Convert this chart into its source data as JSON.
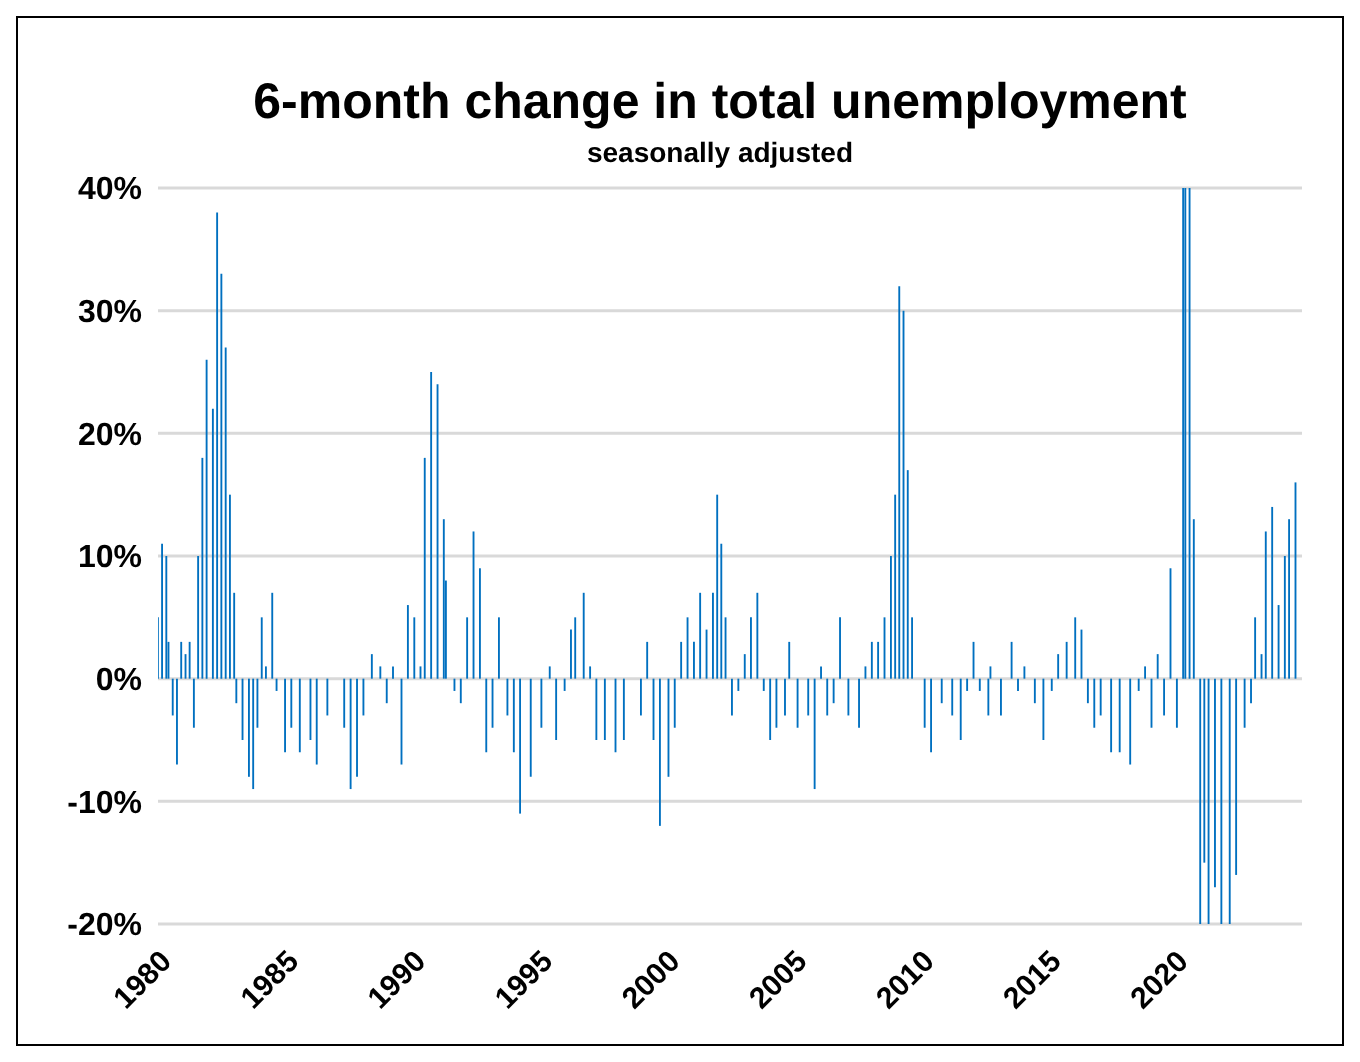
{
  "chart_data": {
    "type": "bar",
    "title": "6-month change in total unemployment",
    "subtitle": "seasonally adjusted",
    "x": [
      "1980-01",
      "1980-03",
      "1980-05",
      "1980-06",
      "1980-08",
      "1980-10",
      "1980-12",
      "1981-02",
      "1981-04",
      "1981-06",
      "1981-08",
      "1981-10",
      "1981-12",
      "1982-03",
      "1982-05",
      "1982-07",
      "1982-09",
      "1982-11",
      "1983-01",
      "1983-02",
      "1983-05",
      "1983-08",
      "1983-10",
      "1983-12",
      "1984-02",
      "1984-04",
      "1984-07",
      "1984-09",
      "1985-01",
      "1985-04",
      "1985-08",
      "1986-01",
      "1986-04",
      "1986-09",
      "1986-12",
      "1987-05",
      "1987-08",
      "1987-11",
      "1988-02",
      "1988-06",
      "1988-10",
      "1989-01",
      "1989-04",
      "1989-08",
      "1989-11",
      "1990-02",
      "1990-05",
      "1990-07",
      "1990-10",
      "1991-01",
      "1991-04",
      "1991-05",
      "1991-09",
      "1991-12",
      "1992-03",
      "1992-06",
      "1992-09",
      "1992-12",
      "1993-03",
      "1993-06",
      "1993-10",
      "1994-01",
      "1994-04",
      "1994-09",
      "1995-02",
      "1995-06",
      "1995-09",
      "1996-01",
      "1996-04",
      "1996-06",
      "1996-10",
      "1997-01",
      "1997-04",
      "1997-08",
      "1998-01",
      "1998-05",
      "1999-01",
      "1999-04",
      "1999-07",
      "1999-10",
      "2000-02",
      "2000-05",
      "2000-08",
      "2000-11",
      "2001-02",
      "2001-05",
      "2001-08",
      "2001-11",
      "2002-01",
      "2002-03",
      "2002-05",
      "2002-08",
      "2002-11",
      "2003-02",
      "2003-05",
      "2003-08",
      "2003-11",
      "2004-02",
      "2004-05",
      "2004-09",
      "2004-11",
      "2005-03",
      "2005-08",
      "2005-11",
      "2006-02",
      "2006-05",
      "2006-08",
      "2006-11",
      "2007-03",
      "2007-08",
      "2007-11",
      "2008-02",
      "2008-05",
      "2008-08",
      "2008-11",
      "2009-01",
      "2009-03",
      "2009-05",
      "2009-07",
      "2009-09",
      "2009-11",
      "2010-03",
      "2010-06",
      "2010-11",
      "2011-04",
      "2011-08",
      "2011-11",
      "2012-02",
      "2012-05",
      "2012-09",
      "2012-10",
      "2013-03",
      "2013-08",
      "2013-11",
      "2014-02",
      "2014-07",
      "2014-11",
      "2015-03",
      "2015-06",
      "2015-10",
      "2016-02",
      "2016-05",
      "2016-08",
      "2016-11",
      "2017-02",
      "2017-07",
      "2017-11",
      "2018-04",
      "2018-08",
      "2018-11",
      "2019-02",
      "2019-05",
      "2019-08",
      "2019-11",
      "2020-02",
      "2020-05",
      "2020-06",
      "2020-08",
      "2020-10",
      "2021-01",
      "2021-03",
      "2021-05",
      "2021-08",
      "2021-11",
      "2022-03",
      "2022-06",
      "2022-10",
      "2023-01",
      "2023-03",
      "2023-06",
      "2023-08",
      "2023-11",
      "2024-02",
      "2024-05",
      "2024-07",
      "2024-10"
    ],
    "values": [
      5,
      11,
      10,
      3,
      -3,
      -7,
      3,
      2,
      3,
      -4,
      10,
      18,
      26,
      22,
      38,
      33,
      27,
      15,
      7,
      -2,
      -5,
      -8,
      -9,
      -4,
      5,
      1,
      7,
      -1,
      -6,
      -4,
      -6,
      -5,
      -7,
      -3,
      0,
      -4,
      -9,
      -8,
      -3,
      2,
      1,
      -2,
      1,
      -7,
      6,
      5,
      1,
      18,
      25,
      24,
      13,
      8,
      -1,
      -2,
      5,
      12,
      9,
      -6,
      -4,
      5,
      -3,
      -6,
      -11,
      -8,
      -4,
      1,
      -5,
      -1,
      4,
      5,
      7,
      1,
      -5,
      -5,
      -6,
      -5,
      -3,
      3,
      -5,
      -12,
      -8,
      -4,
      3,
      5,
      3,
      7,
      4,
      7,
      15,
      11,
      5,
      -3,
      -1,
      2,
      5,
      7,
      -1,
      -5,
      -4,
      -3,
      3,
      -4,
      -3,
      -9,
      1,
      -3,
      -2,
      5,
      -3,
      -4,
      1,
      3,
      3,
      5,
      10,
      15,
      32,
      30,
      17,
      5,
      0,
      -4,
      -6,
      -2,
      -3,
      -5,
      -1,
      3,
      -1,
      -3,
      1,
      -3,
      3,
      -1,
      1,
      -2,
      -5,
      -1,
      2,
      3,
      5,
      4,
      -2,
      -4,
      -3,
      -6,
      -6,
      -7,
      -1,
      1,
      -4,
      2,
      -3,
      9,
      -4,
      40,
      40,
      40,
      13,
      -20,
      -15,
      -20,
      -17,
      -20,
      -20,
      -16,
      -4,
      -2,
      5,
      2,
      12,
      14,
      6,
      10,
      13,
      16
    ],
    "color": "#0070c0",
    "xlim": [
      "1980",
      "2025"
    ],
    "xticks": [
      "1980",
      "1985",
      "1990",
      "1995",
      "2000",
      "2005",
      "2010",
      "2015",
      "2020"
    ],
    "ylim": [
      -20,
      40
    ],
    "yticks": [
      {
        "value": -20,
        "label": "-20%"
      },
      {
        "value": -10,
        "label": "-10%"
      },
      {
        "value": 0,
        "label": "0%"
      },
      {
        "value": 10,
        "label": "10%"
      },
      {
        "value": 20,
        "label": "20%"
      },
      {
        "value": 30,
        "label": "30%"
      },
      {
        "value": 40,
        "label": "40%"
      }
    ],
    "grid": "y",
    "legend": false
  }
}
